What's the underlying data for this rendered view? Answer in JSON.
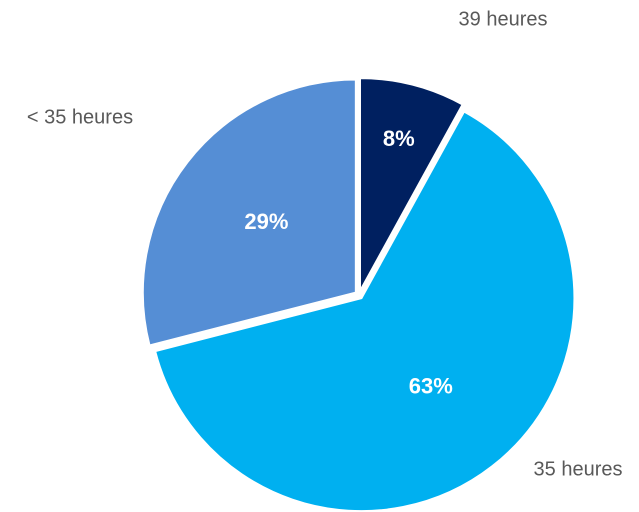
{
  "chart_data": {
    "type": "pie",
    "categories": [
      "39 heures",
      "35 heures",
      "< 35 heures"
    ],
    "values": [
      8,
      63,
      29
    ],
    "value_labels": [
      "8%",
      "63%",
      "29%"
    ],
    "colors": [
      "#002060",
      "#00b0f0",
      "#558ed5"
    ]
  }
}
